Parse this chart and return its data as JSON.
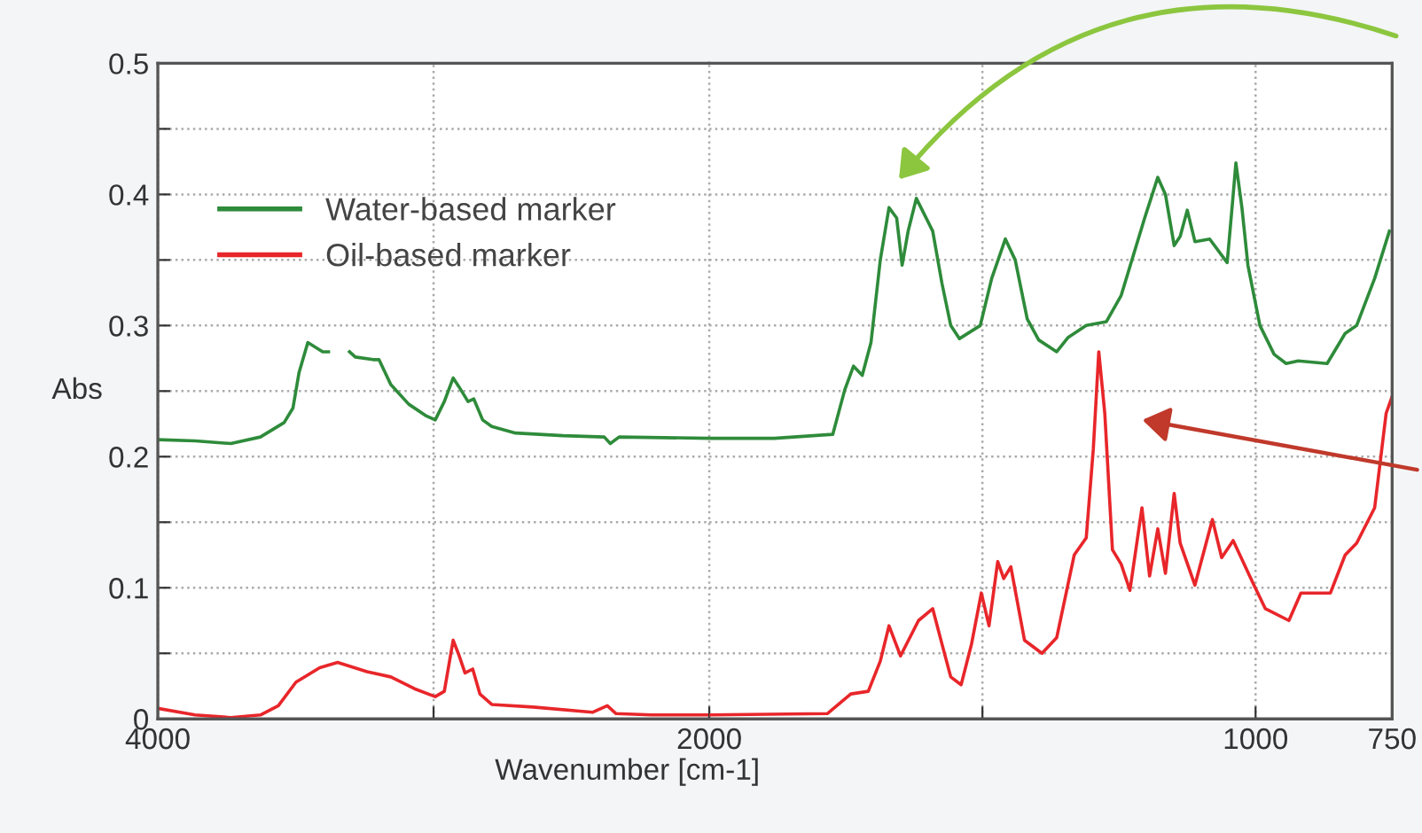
{
  "chart_data": [
    {
      "type": "line",
      "ylabel": "Abs",
      "xlim": [
        4000,
        2000
      ],
      "xticks": [
        4000,
        {
          "value": 3000,
          "label": null
        },
        2000
      ],
      "ylim": [
        0,
        0.5
      ],
      "yticks": [
        0,
        {
          "value": 0.05,
          "label": null
        },
        0.1,
        {
          "value": 0.15,
          "label": null
        },
        0.2,
        {
          "value": 0.25,
          "label": null
        },
        0.3,
        {
          "value": 0.35,
          "label": null
        },
        0.4,
        {
          "value": 0.45,
          "label": null
        },
        0.5
      ],
      "grid": true,
      "legend": "top left",
      "marker": "none",
      "line_style": "solid",
      "series": [
        {
          "name": "Water-based marker",
          "color": "#2e8b3a",
          "x": [
            4000,
            3865,
            3735,
            3628,
            3542,
            3510,
            3488,
            3456,
            3402,
            3381,
            3360,
            3305,
            3284,
            3219,
            3198,
            3155,
            3090,
            3026,
            2994,
            2961,
            2929,
            2907,
            2875,
            2854,
            2822,
            2789,
            2703,
            2531,
            2381,
            2359,
            2327,
            2000
          ],
          "values": [
            0.213,
            0.212,
            0.21,
            0.215,
            0.226,
            0.237,
            0.264,
            0.287,
            0.28,
            0.28,
            null,
            0.28,
            0.276,
            0.274,
            0.274,
            0.255,
            0.24,
            0.231,
            0.228,
            0.242,
            0.26,
            0.253,
            0.242,
            0.244,
            0.228,
            0.223,
            0.218,
            0.216,
            0.215,
            0.21,
            0.215,
            0.214
          ]
        },
        {
          "name": "Oil-based marker",
          "color": "#e8262a",
          "x": [
            4000,
            3865,
            3735,
            3628,
            3563,
            3499,
            3413,
            3348,
            3241,
            3155,
            3069,
            2994,
            2961,
            2929,
            2907,
            2886,
            2858,
            2832,
            2789,
            2639,
            2424,
            2370,
            2338,
            2209,
            2000
          ],
          "values": [
            0.008,
            0.003,
            0.001,
            0.003,
            0.01,
            0.028,
            0.039,
            0.043,
            0.036,
            0.032,
            0.023,
            0.017,
            0.021,
            0.06,
            0.048,
            0.035,
            0.038,
            0.019,
            0.011,
            0.009,
            0.005,
            0.01,
            0.004,
            0.003,
            0.003
          ]
        }
      ]
    },
    {
      "type": "line",
      "xlabel": "Wavenumber [cm-1]",
      "xlim": [
        2000,
        750
      ],
      "xticks": [
        {
          "value": 2000,
          "label": null
        },
        {
          "value": 1500,
          "label": null
        },
        1000,
        750
      ],
      "ylim": [
        0,
        0.5
      ],
      "yticks": [
        0,
        0.05,
        0.1,
        0.15,
        0.2,
        0.25,
        0.3,
        0.35,
        0.4,
        0.45,
        0.5
      ],
      "tick_labels": "x",
      "grid": true,
      "marker": "none",
      "line_style": "solid",
      "series": [
        {
          "color": "#2e8b3a",
          "x": [
            2000,
            1881,
            1774,
            1752,
            1736,
            1720,
            1704,
            1687,
            1671,
            1657,
            1647,
            1636,
            1621,
            1591,
            1574,
            1558,
            1542,
            1504,
            1483,
            1458,
            1440,
            1418,
            1397,
            1364,
            1343,
            1310,
            1273,
            1246,
            1203,
            1179,
            1165,
            1149,
            1138,
            1125,
            1111,
            1084,
            1052,
            1043,
            1036,
            1025,
            1014,
            992,
            966,
            944,
            922,
            869,
            836,
            815,
            782,
            755
          ],
          "values": [
            0.214,
            0.214,
            0.217,
            0.251,
            0.269,
            0.262,
            0.287,
            0.35,
            0.39,
            0.382,
            0.346,
            0.372,
            0.397,
            0.372,
            0.332,
            0.3,
            0.29,
            0.3,
            0.336,
            0.366,
            0.35,
            0.305,
            0.289,
            0.28,
            0.291,
            0.3,
            0.303,
            0.323,
            0.382,
            0.413,
            0.4,
            0.361,
            0.368,
            0.388,
            0.364,
            0.366,
            0.348,
            0.39,
            0.424,
            0.39,
            0.346,
            0.3,
            0.278,
            0.271,
            0.273,
            0.271,
            0.294,
            0.3,
            0.336,
            0.372
          ]
        },
        {
          "color": "#e8262a",
          "x": [
            2000,
            1784,
            1741,
            1709,
            1687,
            1671,
            1650,
            1617,
            1591,
            1574,
            1558,
            1539,
            1520,
            1502,
            1488,
            1472,
            1461,
            1448,
            1423,
            1391,
            1364,
            1332,
            1310,
            1297,
            1287,
            1276,
            1262,
            1246,
            1230,
            1208,
            1194,
            1179,
            1165,
            1149,
            1138,
            1111,
            1079,
            1062,
            1041,
            1003,
            982,
            939,
            917,
            863,
            836,
            815,
            782,
            761,
            750
          ],
          "values": [
            0.003,
            0.004,
            0.019,
            0.021,
            0.044,
            0.071,
            0.048,
            0.075,
            0.084,
            0.057,
            0.032,
            0.026,
            0.057,
            0.096,
            0.071,
            0.12,
            0.107,
            0.116,
            0.06,
            0.05,
            0.062,
            0.125,
            0.138,
            0.206,
            0.28,
            0.233,
            0.129,
            0.118,
            0.098,
            0.161,
            0.109,
            0.145,
            0.111,
            0.172,
            0.134,
            0.102,
            0.152,
            0.123,
            0.136,
            0.102,
            0.084,
            0.075,
            0.096,
            0.096,
            0.125,
            0.134,
            0.161,
            0.233,
            0.246
          ]
        }
      ]
    }
  ]
}
